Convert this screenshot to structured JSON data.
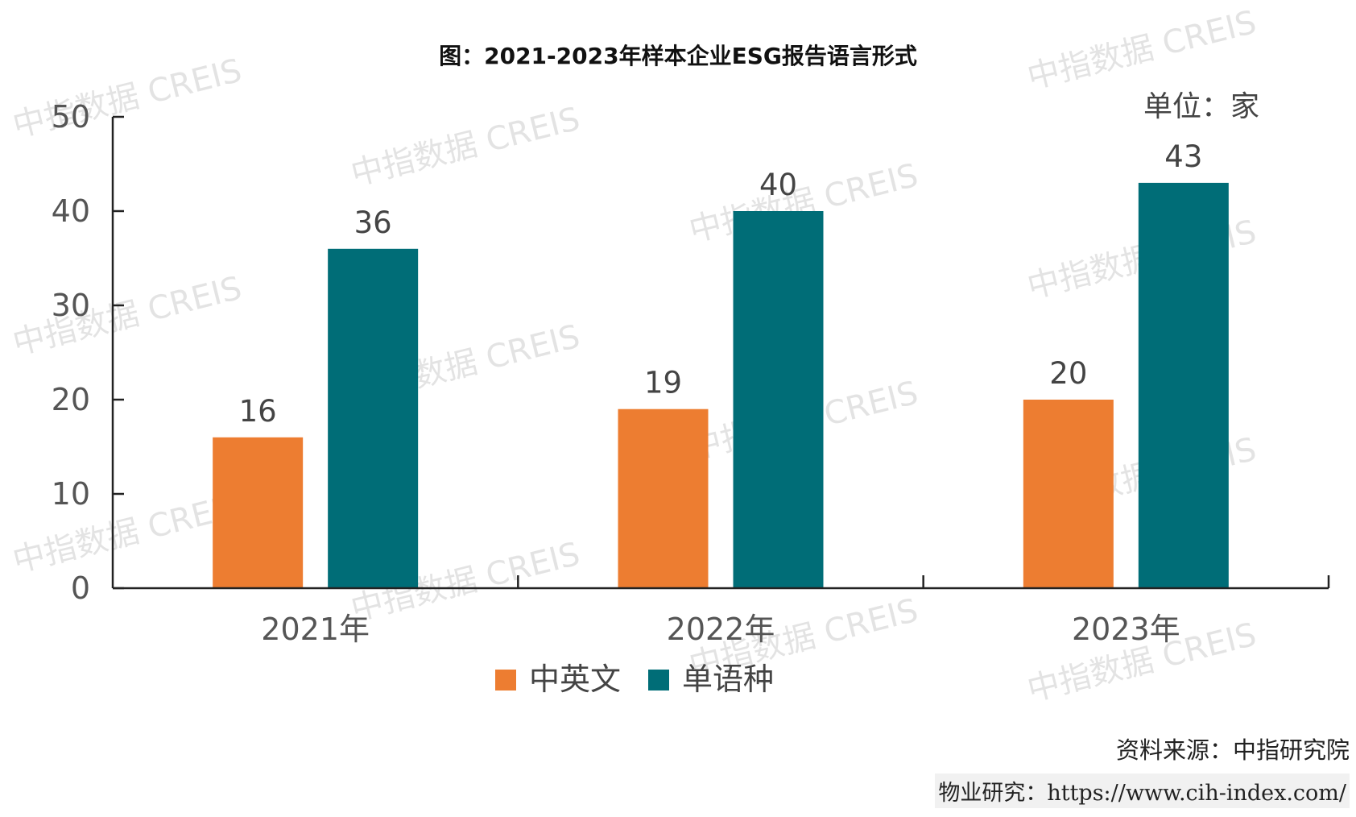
{
  "title": "图：2021-2023年样本企业ESG报告语言形式",
  "unit": "单位：家",
  "source": "资料来源：中指研究院",
  "footer": {
    "prefix": "物业研究：",
    "url": "https://www.cih-index.com/"
  },
  "watermark": "中指数据 CREIS",
  "colors": {
    "series1": "#ed7d31",
    "series2": "#006d77",
    "axis": "#222222"
  },
  "chart_data": {
    "type": "bar",
    "categories": [
      "2021年",
      "2022年",
      "2023年"
    ],
    "series": [
      {
        "name": "中英文",
        "values": [
          16,
          19,
          20
        ]
      },
      {
        "name": "单语种",
        "values": [
          36,
          40,
          43
        ]
      }
    ],
    "y_ticks": [
      "0",
      "10",
      "20",
      "30",
      "40",
      "50"
    ],
    "ylim": [
      0,
      50
    ],
    "data_labels": true,
    "grid": false,
    "legend_position": "bottom"
  }
}
